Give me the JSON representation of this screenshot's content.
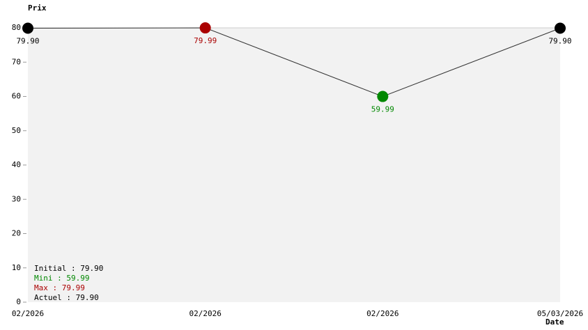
{
  "chart_data": {
    "type": "line",
    "y_label": "Prix",
    "x_label": "Date",
    "categories": [
      "02/2026",
      "02/2026",
      "02/2026",
      "05/03/2026"
    ],
    "values": [
      79.9,
      79.99,
      59.99,
      79.9
    ],
    "value_labels": [
      "79.90",
      "79.99",
      "59.99",
      "79.90"
    ],
    "point_colors": [
      "#000000",
      "#aa0000",
      "#008800",
      "#000000"
    ],
    "color": "#333333",
    "ylim": [
      0,
      80
    ],
    "yticks": [
      0,
      10,
      20,
      30,
      40,
      50,
      60,
      70,
      80
    ],
    "summary": [
      {
        "text": "Initial : 79.90",
        "color": "#000000"
      },
      {
        "text": "Mini : 59.99",
        "color": "#008800"
      },
      {
        "text": "Max : 79.99",
        "color": "#aa0000"
      },
      {
        "text": "Actuel : 79.90",
        "color": "#000000"
      }
    ]
  }
}
